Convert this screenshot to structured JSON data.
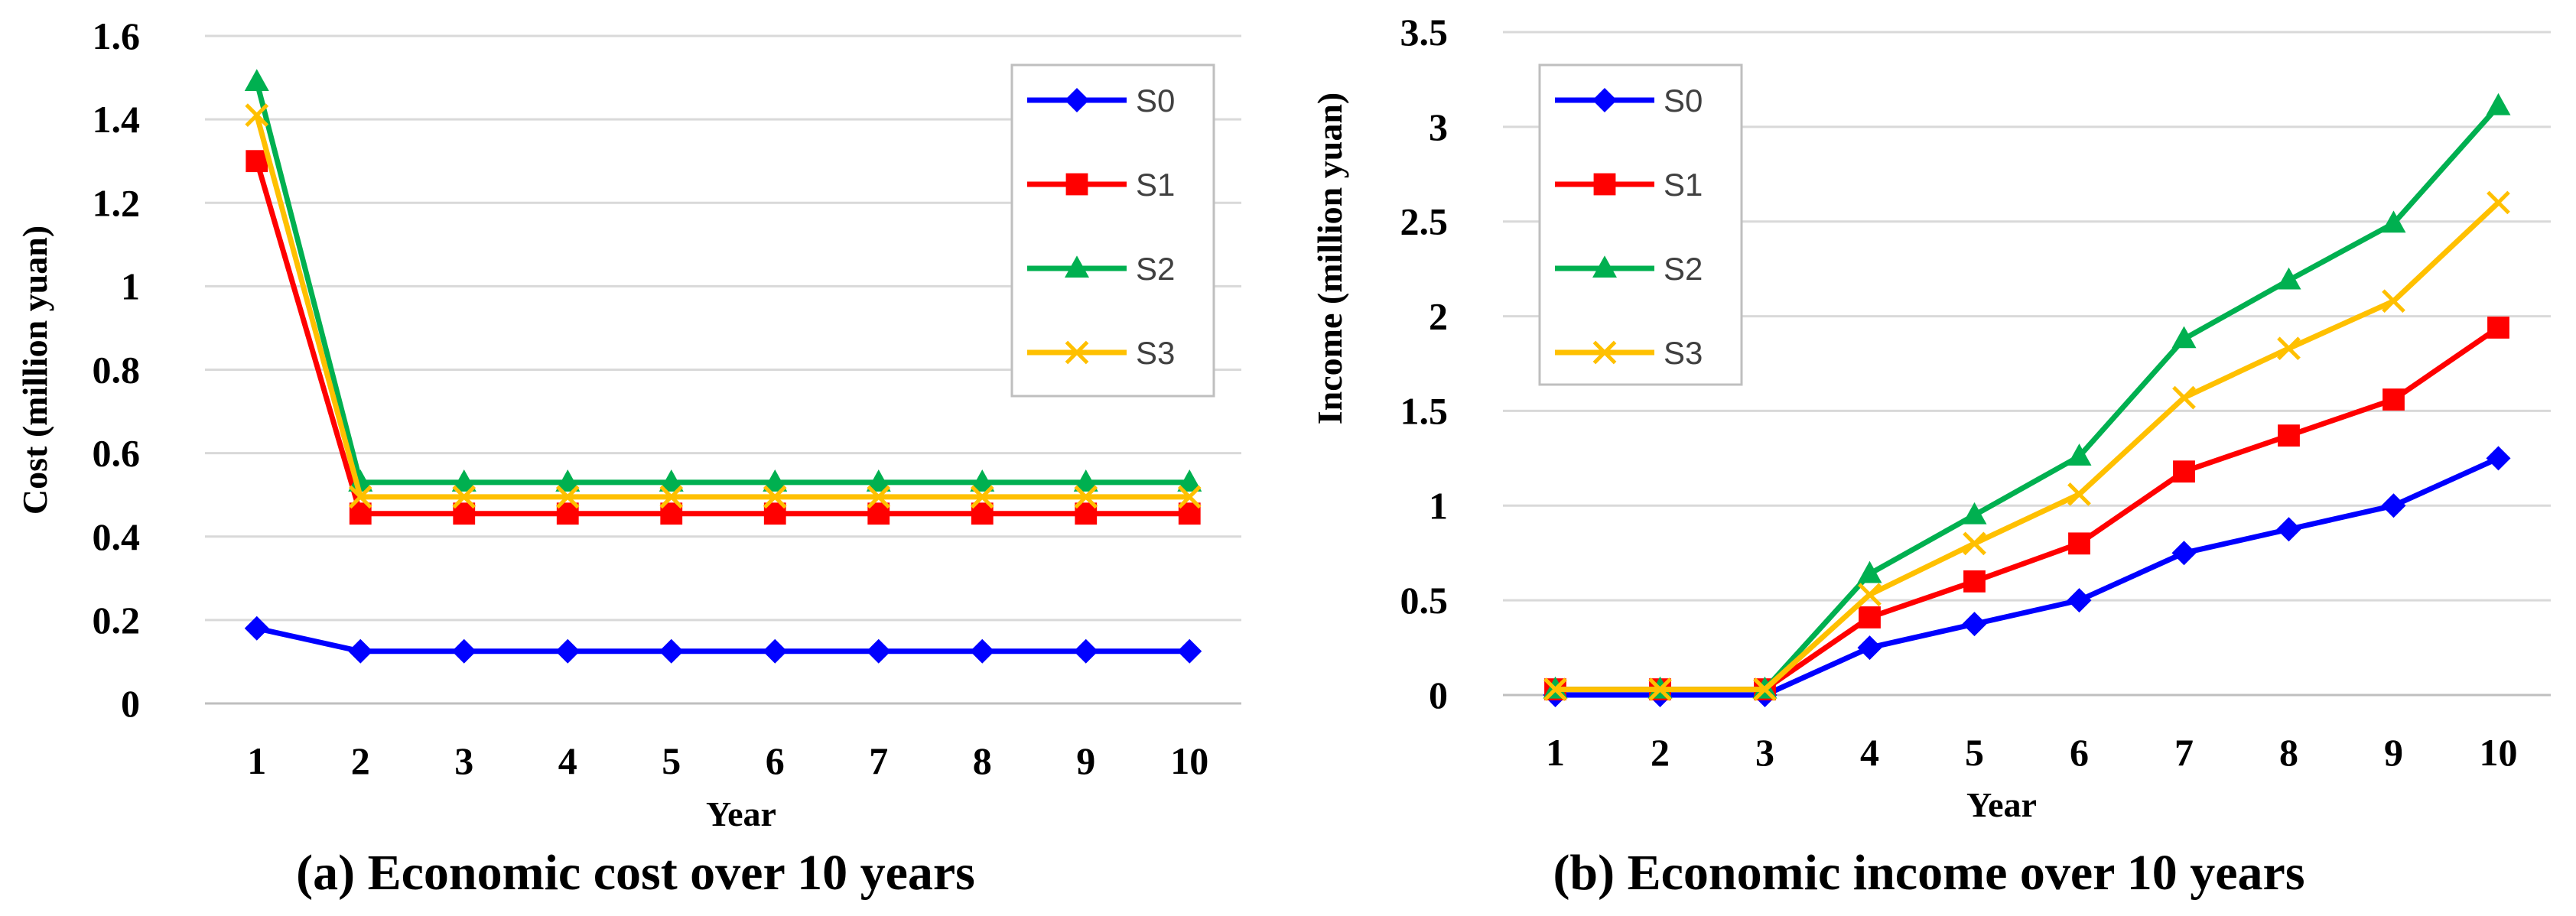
{
  "chart_data": [
    {
      "type": "line",
      "title": "(a) Economic cost over 10 years",
      "xlabel": "Year",
      "ylabel": "Cost (million yuan)",
      "categories": [
        "1",
        "2",
        "3",
        "4",
        "5",
        "6",
        "7",
        "8",
        "9",
        "10"
      ],
      "y_ticks": [
        "0",
        "0.2",
        "0.4",
        "0.6",
        "0.8",
        "1",
        "1.2",
        "1.4",
        "1.6"
      ],
      "ylim": [
        0,
        1.6
      ],
      "grid": true,
      "legend_position": "top-right",
      "series": [
        {
          "name": "S0",
          "color": "#0000FF",
          "marker": "diamond",
          "values": [
            0.18,
            0.125,
            0.125,
            0.125,
            0.125,
            0.125,
            0.125,
            0.125,
            0.125,
            0.125
          ]
        },
        {
          "name": "S1",
          "color": "#FF0000",
          "marker": "square",
          "values": [
            1.3,
            0.455,
            0.455,
            0.455,
            0.455,
            0.455,
            0.455,
            0.455,
            0.455,
            0.455
          ]
        },
        {
          "name": "S2",
          "color": "#00B050",
          "marker": "triangle",
          "values": [
            1.49,
            0.53,
            0.53,
            0.53,
            0.53,
            0.53,
            0.53,
            0.53,
            0.53,
            0.53
          ]
        },
        {
          "name": "S3",
          "color": "#FFC000",
          "marker": "x",
          "values": [
            1.41,
            0.495,
            0.495,
            0.495,
            0.495,
            0.495,
            0.495,
            0.495,
            0.495,
            0.495
          ]
        }
      ]
    },
    {
      "type": "line",
      "title": "(b) Economic income over 10 years",
      "xlabel": "Year",
      "ylabel": "Income (million yuan)",
      "categories": [
        "1",
        "2",
        "3",
        "4",
        "5",
        "6",
        "7",
        "8",
        "9",
        "10"
      ],
      "y_ticks": [
        "0",
        "0.5",
        "1",
        "1.5",
        "2",
        "2.5",
        "3",
        "3.5"
      ],
      "ylim": [
        0,
        3.5
      ],
      "grid": true,
      "legend_position": "top-left",
      "series": [
        {
          "name": "S0",
          "color": "#0000FF",
          "marker": "diamond",
          "values": [
            0,
            0,
            0,
            0.25,
            0.375,
            0.5,
            0.75,
            0.875,
            1.0,
            1.25
          ]
        },
        {
          "name": "S1",
          "color": "#FF0000",
          "marker": "square",
          "values": [
            0.03,
            0.03,
            0.03,
            0.41,
            0.6,
            0.8,
            1.18,
            1.37,
            1.56,
            1.94
          ]
        },
        {
          "name": "S2",
          "color": "#00B050",
          "marker": "triangle",
          "values": [
            0.03,
            0.03,
            0.03,
            0.64,
            0.95,
            1.26,
            1.88,
            2.19,
            2.49,
            3.11
          ]
        },
        {
          "name": "S3",
          "color": "#FFC000",
          "marker": "x",
          "values": [
            0.03,
            0.03,
            0.03,
            0.53,
            0.8,
            1.06,
            1.57,
            1.83,
            2.08,
            2.6
          ]
        }
      ]
    }
  ]
}
